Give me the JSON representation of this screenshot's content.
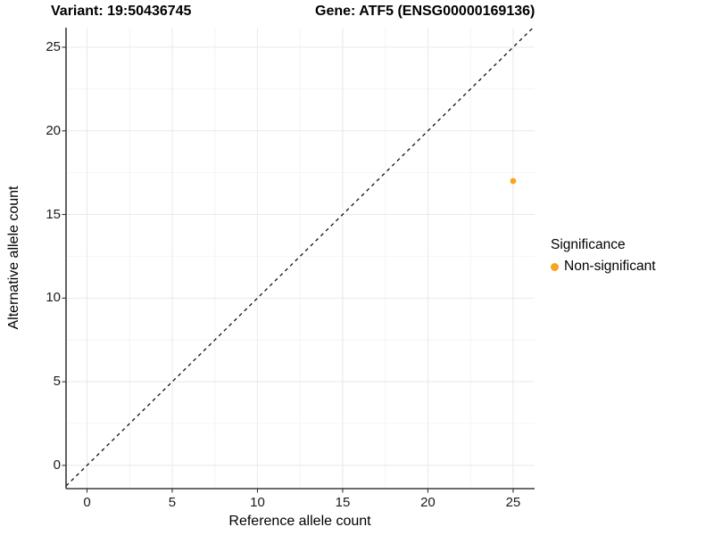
{
  "figure": {
    "title_left": "Variant: 19:50436745",
    "title_right": "Gene: ATF5 (ENSG00000169136)"
  },
  "chart_data": {
    "type": "scatter",
    "title": "Variant: 19:50436745   Gene: ATF5 (ENSG00000169136)",
    "xlabel": "Reference allele count",
    "ylabel": "Alternative allele count",
    "xlim": [
      -1.23,
      26.26
    ],
    "ylim": [
      -1.39,
      26.17
    ],
    "x_ticks": [
      0,
      5,
      10,
      15,
      20,
      25
    ],
    "y_ticks": [
      0,
      5,
      10,
      15,
      20,
      25
    ],
    "x_minor_ticks": [
      2.5,
      7.5,
      12.5,
      17.5,
      22.5
    ],
    "y_minor_ticks": [
      2.5,
      7.5,
      12.5,
      17.5,
      22.5
    ],
    "grid": true,
    "series": [
      {
        "name": "Non-significant",
        "color": "#FAA41E",
        "marker": "circle",
        "points": [
          {
            "x": 25,
            "y": 17
          }
        ]
      }
    ],
    "reference_line": {
      "type": "abline",
      "slope": 1,
      "intercept": 0,
      "style": "dashed",
      "color": "#111111"
    },
    "legend": {
      "title": "Significance",
      "position": "right",
      "items": [
        {
          "label": "Non-significant",
          "color": "#FAA41E",
          "marker": "circle"
        }
      ]
    },
    "colors": {
      "background": "#FFFFFF",
      "grid_major": "#E9E9E9",
      "grid_minor": "#F4F4F4",
      "axis_line": "#3B3B3B",
      "tick_mark": "#333333",
      "tick_text": "#1A1A1A",
      "point": "#FAA41E"
    }
  }
}
